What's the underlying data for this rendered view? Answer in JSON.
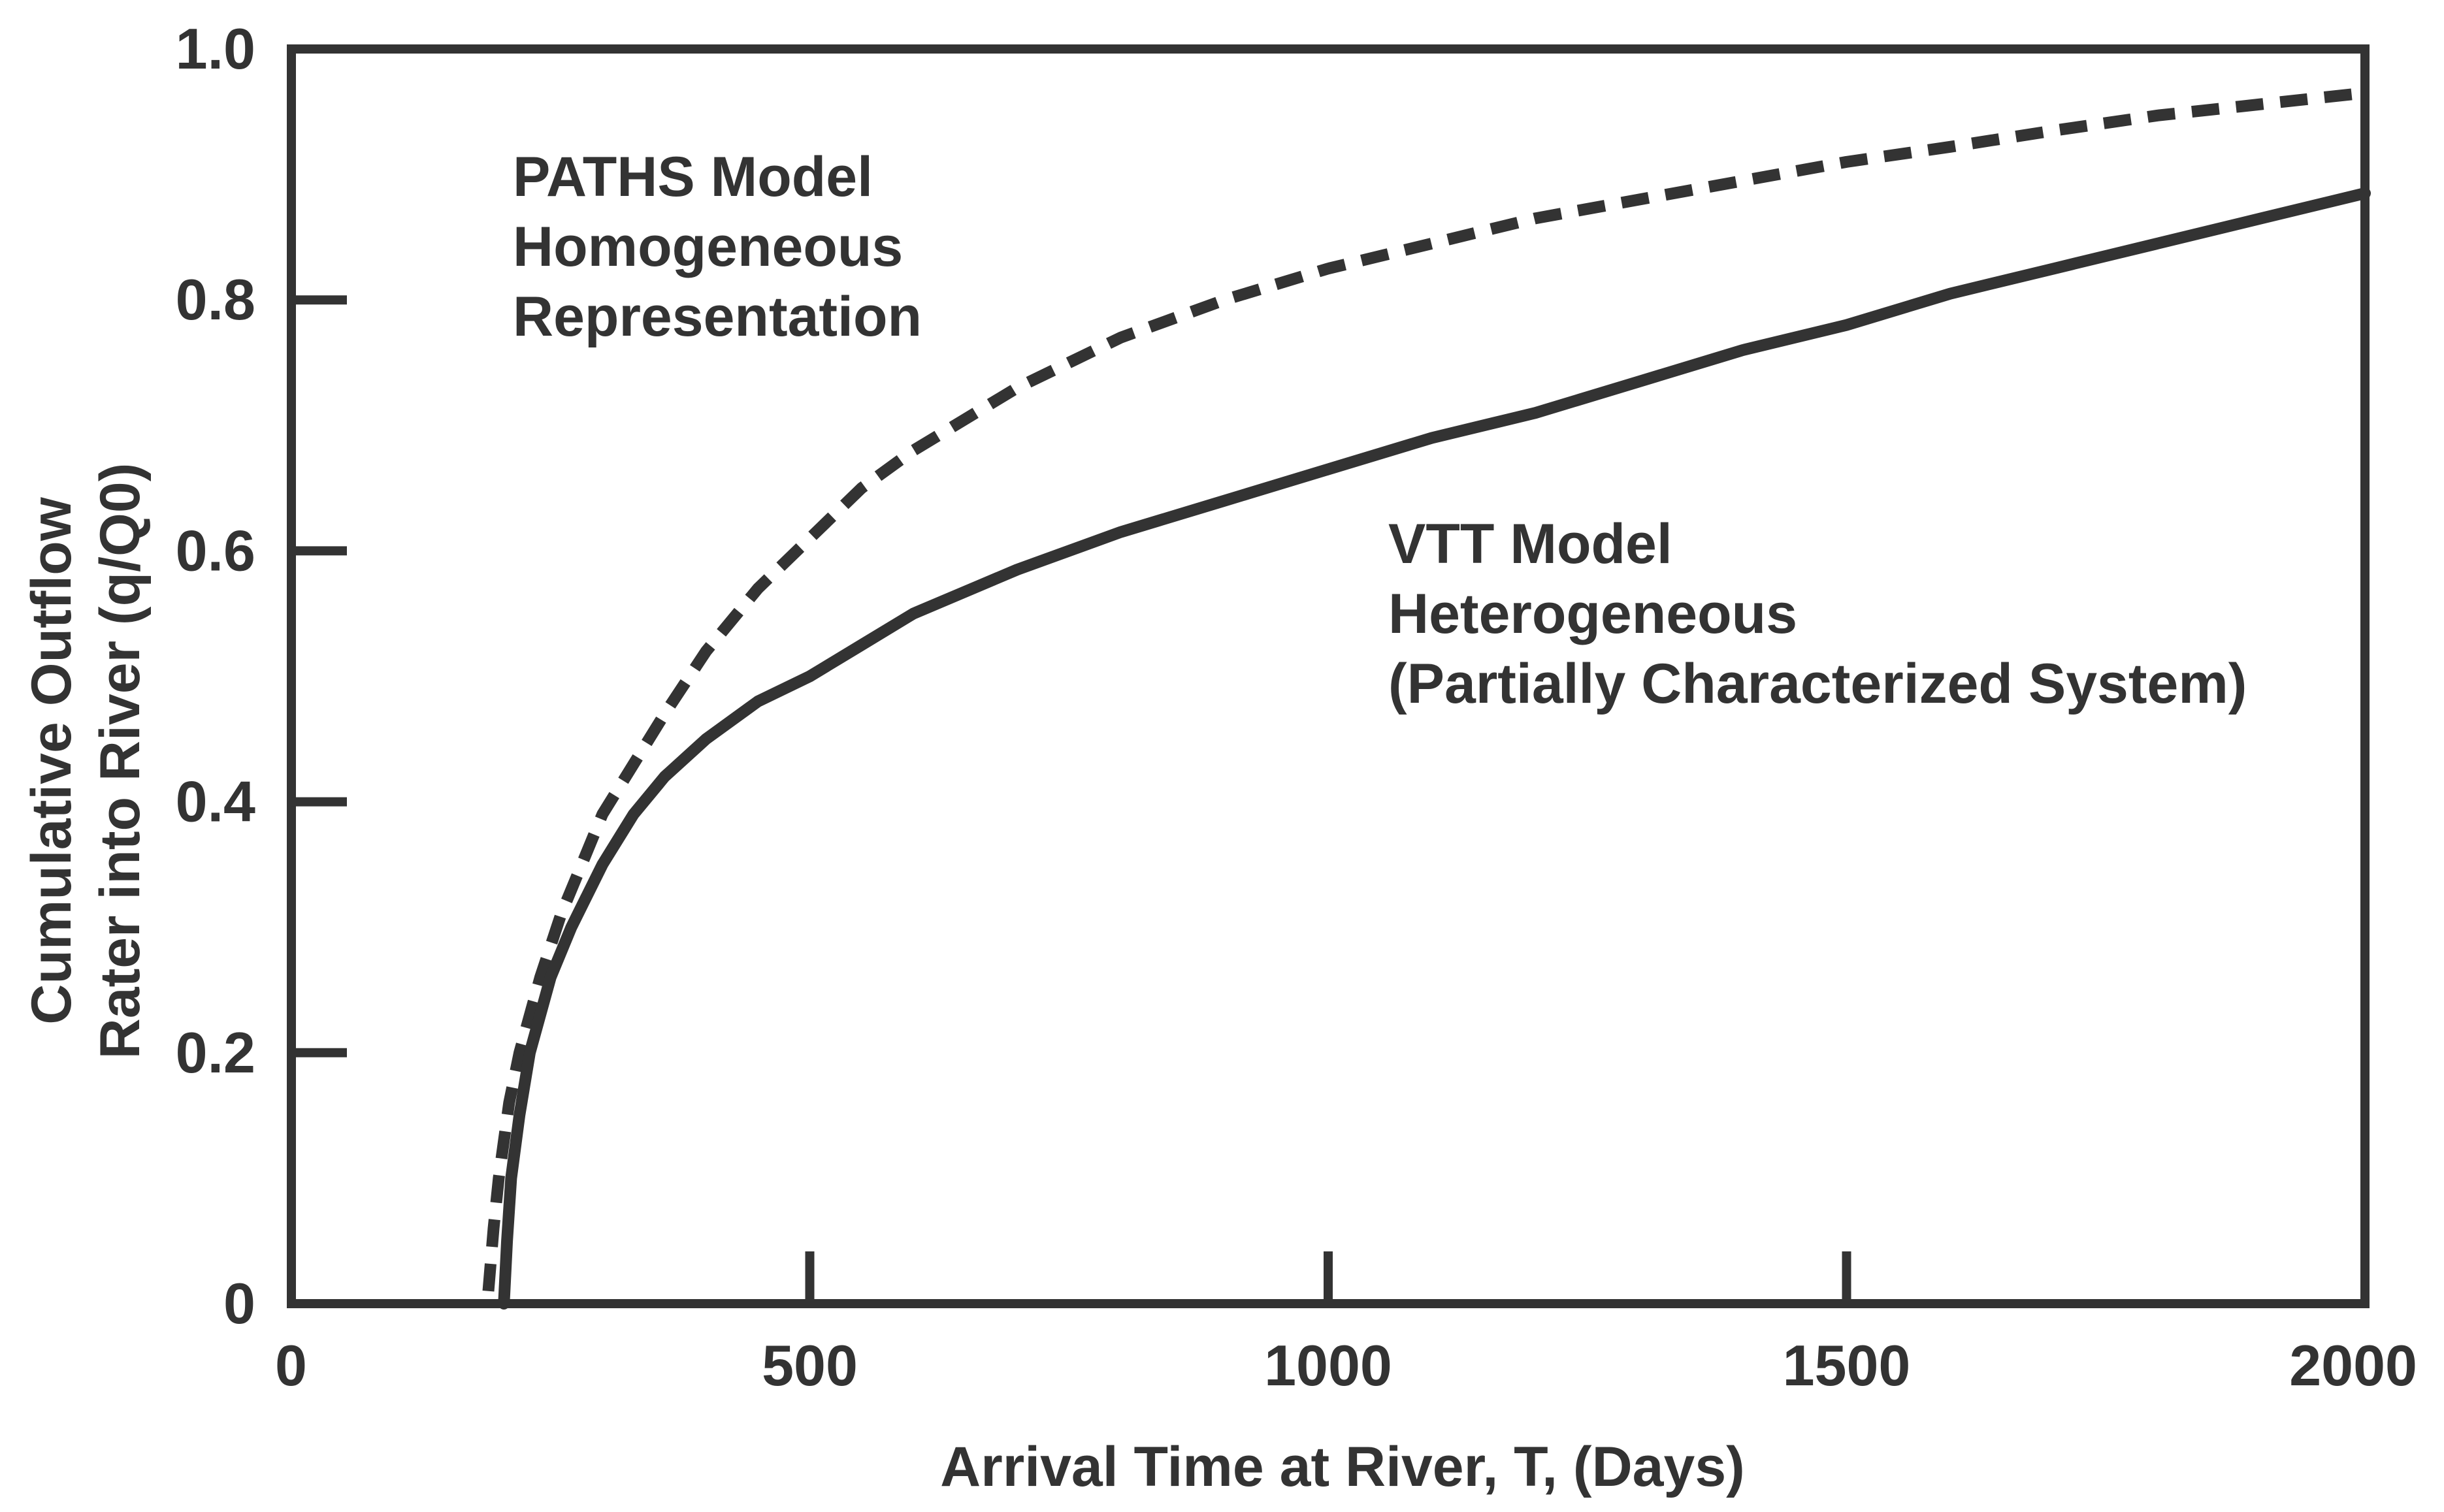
{
  "chart_data": {
    "type": "line",
    "title": "",
    "xlabel": "Arrival Time at River, T, (Days)",
    "ylabel": [
      "Cumulative Outflow",
      "Rater into River (q/Q0)"
    ],
    "xlim": [
      0,
      2000
    ],
    "ylim": [
      0,
      1.0
    ],
    "x_ticks": [
      0,
      500,
      1000,
      1500,
      2000
    ],
    "x_tick_labels": [
      "0",
      "500",
      "1000",
      "1500",
      "2000"
    ],
    "y_ticks": [
      0,
      0.2,
      0.4,
      0.6,
      0.8,
      1.0
    ],
    "y_tick_labels": [
      "0",
      "0.2",
      "0.4",
      "0.6",
      "0.8",
      "1.0"
    ],
    "grid": false,
    "series": [
      {
        "name": "PATHS Model Homogeneous Representation",
        "style": "dashed",
        "x": [
          190,
          195,
          200,
          210,
          220,
          240,
          260,
          280,
          300,
          330,
          360,
          400,
          450,
          500,
          550,
          600,
          700,
          800,
          900,
          1000,
          1100,
          1200,
          1300,
          1400,
          1500,
          1600,
          1700,
          1800,
          1900,
          2000
        ],
        "y": [
          0.01,
          0.06,
          0.1,
          0.16,
          0.2,
          0.26,
          0.31,
          0.35,
          0.39,
          0.43,
          0.47,
          0.52,
          0.57,
          0.61,
          0.65,
          0.68,
          0.73,
          0.77,
          0.8,
          0.825,
          0.845,
          0.865,
          0.88,
          0.895,
          0.91,
          0.922,
          0.935,
          0.947,
          0.956,
          0.965
        ]
      },
      {
        "name": "VTT Model Heterogeneous (Partially Characterized System)",
        "style": "solid",
        "x": [
          205,
          208,
          212,
          220,
          230,
          250,
          270,
          300,
          330,
          360,
          400,
          450,
          500,
          550,
          600,
          700,
          800,
          900,
          1000,
          1100,
          1200,
          1300,
          1400,
          1500,
          1600,
          1700,
          1800,
          1900,
          2000
        ],
        "y": [
          0.0,
          0.05,
          0.1,
          0.15,
          0.2,
          0.26,
          0.3,
          0.35,
          0.39,
          0.42,
          0.45,
          0.48,
          0.5,
          0.525,
          0.55,
          0.585,
          0.615,
          0.64,
          0.665,
          0.69,
          0.71,
          0.735,
          0.76,
          0.78,
          0.805,
          0.825,
          0.845,
          0.865,
          0.885
        ]
      }
    ],
    "annotations": [
      {
        "lines": [
          "PATHS Model",
          "Homogeneous",
          "Representation"
        ]
      },
      {
        "lines": [
          "VTT Model",
          "Heterogeneous",
          "(Partially Characterized System)"
        ]
      }
    ]
  },
  "colors": {
    "ink": "#333333",
    "background": "#ffffff"
  }
}
